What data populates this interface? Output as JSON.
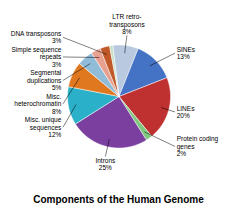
{
  "chart_data": {
    "type": "pie",
    "title": "Components of the Human Genome",
    "categories": [
      "LTR retro-\ntransposons",
      "SINEs",
      "LINEs",
      "Protein coding\ngenes",
      "Introns",
      "Misc. unique\nsequences",
      "Misc.\nheterochromatin",
      "Segmental\nduplications",
      "Simple sequence\nrepeats",
      "DNA transposons",
      null
    ],
    "values": [
      8,
      13,
      20,
      2,
      25,
      12,
      8,
      5,
      3,
      3,
      1
    ],
    "value_labels": [
      "8%",
      "13%",
      "20%",
      "2%",
      "25%",
      "12%",
      "8%",
      "5%",
      "3%",
      "3%",
      null
    ],
    "data_labels": true,
    "colors": [
      "#b8c9e0",
      "#4472c4",
      "#bf3030",
      "#7fc97f",
      "#7b3fa0",
      "#2ab0c8",
      "#e07820",
      "#90bcd8",
      "#e8a090",
      "#c05828",
      "#c8dfc8"
    ]
  }
}
